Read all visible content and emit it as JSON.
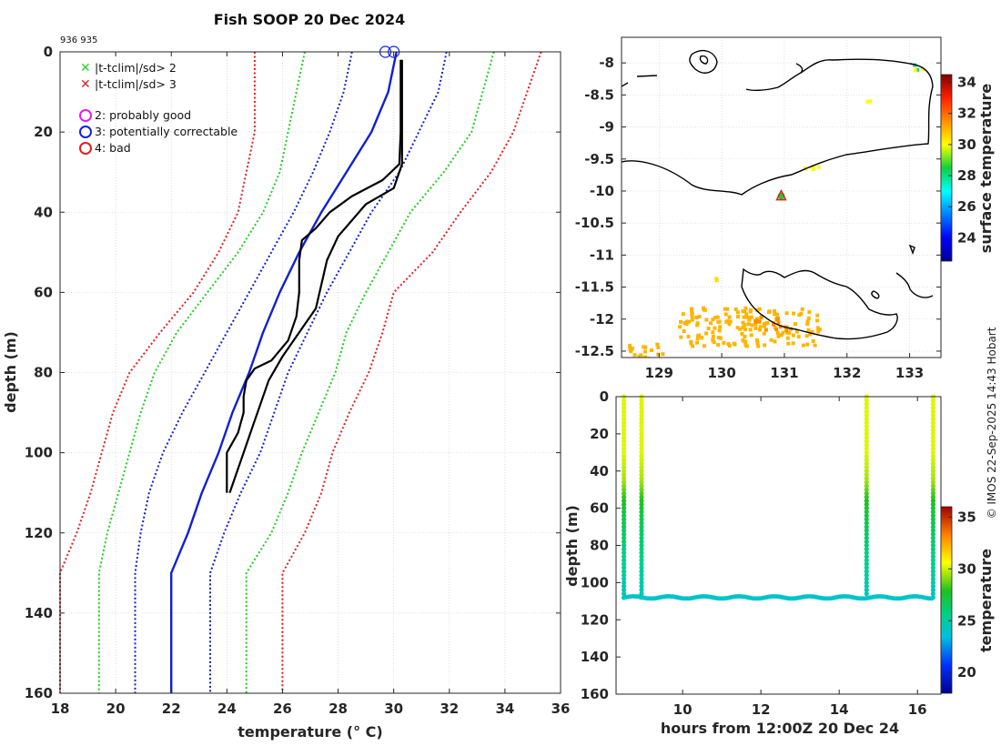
{
  "figure": {
    "title": "Fish SOOP 20 Dec 2024",
    "ids": "936 935",
    "credit": "© IMOS 22-Sep-2025 14:43 Hobart"
  },
  "legend": {
    "cross_items": [
      {
        "label": "|t-tclim|/sd> 2",
        "color": "#22dd22"
      },
      {
        "label": "|t-tclim|/sd> 3",
        "color": "#e02020"
      }
    ],
    "circle_items": [
      {
        "label": "2: probably good",
        "color": "#e020e0"
      },
      {
        "label": "3: potentially correctable",
        "color": "#1020e0"
      },
      {
        "label": "4: bad",
        "color": "#e02020"
      }
    ]
  },
  "chart_data": [
    {
      "type": "line",
      "name": "profile",
      "title": "Fish SOOP 20 Dec 2024",
      "xlabel": "temperature (° C)",
      "ylabel": "depth (m)",
      "xlim": [
        18,
        36
      ],
      "ylim": [
        0,
        160
      ],
      "y_reversed": true,
      "xticks": [
        18,
        20,
        22,
        24,
        26,
        28,
        30,
        32,
        34,
        36
      ],
      "yticks": [
        0,
        20,
        40,
        60,
        80,
        100,
        120,
        140,
        160
      ],
      "grid": true,
      "series": [
        {
          "name": "clim_mean",
          "style": "solid",
          "color": "#1020d0",
          "depth": [
            0,
            10,
            20,
            30,
            40,
            50,
            60,
            70,
            80,
            90,
            100,
            110,
            120,
            130,
            160
          ],
          "temp": [
            30.1,
            29.8,
            29.2,
            28.3,
            27.4,
            26.6,
            25.9,
            25.3,
            24.8,
            24.2,
            23.7,
            23.1,
            22.6,
            22.0,
            22.0
          ]
        },
        {
          "name": "clim_minus_1sd",
          "style": "dotted",
          "color": "#1020d0",
          "depth": [
            0,
            10,
            20,
            30,
            40,
            50,
            60,
            70,
            80,
            90,
            100,
            110,
            120,
            130,
            160
          ],
          "temp": [
            28.5,
            28.2,
            27.7,
            27.1,
            26.4,
            25.6,
            24.8,
            24.0,
            23.2,
            22.4,
            21.7,
            21.2,
            20.9,
            20.7,
            20.7
          ]
        },
        {
          "name": "clim_plus_1sd",
          "style": "dotted",
          "color": "#1020d0",
          "depth": [
            0,
            10,
            20,
            30,
            40,
            50,
            60,
            70,
            80,
            90,
            100,
            110,
            120,
            130,
            160
          ],
          "temp": [
            31.9,
            31.6,
            30.9,
            30.2,
            29.2,
            28.4,
            27.6,
            26.9,
            26.2,
            25.7,
            25.2,
            24.5,
            23.9,
            23.4,
            23.4
          ]
        },
        {
          "name": "clim_minus_2sd",
          "style": "dotted",
          "color": "#22cc22",
          "depth": [
            0,
            10,
            20,
            30,
            40,
            50,
            60,
            70,
            80,
            90,
            100,
            110,
            120,
            130,
            160
          ],
          "temp": [
            26.8,
            26.5,
            26.2,
            25.9,
            25.3,
            24.4,
            23.3,
            22.2,
            21.4,
            20.9,
            20.5,
            20.1,
            19.7,
            19.4,
            19.4
          ]
        },
        {
          "name": "clim_plus_2sd",
          "style": "dotted",
          "color": "#22cc22",
          "depth": [
            0,
            10,
            20,
            30,
            40,
            50,
            60,
            70,
            80,
            90,
            100,
            110,
            120,
            130,
            160
          ],
          "temp": [
            33.6,
            33.2,
            32.8,
            31.8,
            30.6,
            29.8,
            29.0,
            28.3,
            27.9,
            27.3,
            26.7,
            26.2,
            25.6,
            24.7,
            24.7
          ]
        },
        {
          "name": "clim_minus_3sd",
          "style": "dotted",
          "color": "#e02020",
          "depth": [
            0,
            10,
            20,
            30,
            40,
            50,
            60,
            70,
            80,
            90,
            100,
            110,
            120,
            130,
            160
          ],
          "temp": [
            25.0,
            25.0,
            25.0,
            24.7,
            24.4,
            23.7,
            22.8,
            21.6,
            20.5,
            19.9,
            19.5,
            19.1,
            18.6,
            18.0,
            18.0
          ]
        },
        {
          "name": "clim_plus_3sd",
          "style": "dotted",
          "color": "#e02020",
          "depth": [
            0,
            10,
            20,
            30,
            40,
            50,
            60,
            70,
            80,
            90,
            100,
            110,
            120,
            130,
            160
          ],
          "temp": [
            35.3,
            34.8,
            34.3,
            33.5,
            32.4,
            31.4,
            30.0,
            29.6,
            29.1,
            28.4,
            27.8,
            27.4,
            26.8,
            26.0,
            26.0
          ]
        },
        {
          "name": "profile_936",
          "style": "solid",
          "color": "#000000",
          "depth": [
            2,
            10,
            20,
            28,
            32,
            36,
            40,
            44,
            47,
            52,
            60,
            66,
            72,
            77,
            79,
            82,
            86,
            90,
            95,
            100,
            103,
            110
          ],
          "temp": [
            30.25,
            30.25,
            30.25,
            30.2,
            29.6,
            28.5,
            27.7,
            27.2,
            26.7,
            26.6,
            26.6,
            26.5,
            26.2,
            25.6,
            25.0,
            24.7,
            24.6,
            24.6,
            24.4,
            24.0,
            24.0,
            24.0
          ]
        },
        {
          "name": "profile_935",
          "style": "solid",
          "color": "#000000",
          "depth": [
            2,
            10,
            20,
            28,
            34,
            38,
            42,
            46,
            52,
            58,
            64,
            70,
            76,
            82,
            88,
            94,
            100,
            110
          ],
          "temp": [
            30.3,
            30.3,
            30.3,
            30.3,
            30.0,
            29.0,
            28.5,
            28.0,
            27.6,
            27.4,
            27.2,
            26.6,
            26.0,
            25.5,
            25.2,
            24.9,
            24.6,
            24.1
          ]
        }
      ],
      "flag_markers": [
        {
          "label": "3",
          "depth": 0,
          "temp": 29.7
        },
        {
          "label": "3",
          "depth": 0,
          "temp": 30.0
        }
      ]
    },
    {
      "type": "heatmap",
      "name": "sst_map",
      "colorbar_label": "surface temperature",
      "xlim": [
        128.4,
        133.5
      ],
      "ylim": [
        -12.6,
        -7.6
      ],
      "xticks": [
        129,
        130,
        131,
        132,
        133
      ],
      "yticks": [
        -8,
        -8.5,
        -9,
        -9.5,
        -10,
        -10.5,
        -11,
        -11.5,
        -12,
        -12.5
      ],
      "clim": [
        22.5,
        34.5
      ],
      "cticks": [
        24,
        26,
        28,
        30,
        32,
        34
      ],
      "station": {
        "lon": 130.95,
        "lat": -10.08
      },
      "sst_patches": [
        {
          "lon0": 129.3,
          "lon1": 131.6,
          "lat0": -12.4,
          "lat1": -11.8,
          "value": 31.0
        },
        {
          "lon0": 130.5,
          "lon1": 131.1,
          "lat0": -12.15,
          "lat1": -11.95,
          "value": 31.5
        },
        {
          "lon0": 128.45,
          "lon1": 129.1,
          "lat0": -12.6,
          "lat1": -12.35,
          "value": 31.0
        },
        {
          "lon0": 131.3,
          "lon1": 131.6,
          "lat0": -9.7,
          "lat1": -9.55,
          "value": 30.0
        },
        {
          "lon0": 132.3,
          "lon1": 132.4,
          "lat0": -8.6,
          "lat1": -8.5,
          "value": 30.0
        },
        {
          "lon0": 132.9,
          "lon1": 133.1,
          "lat0": -8.1,
          "lat1": -8.0,
          "value": 28.0
        },
        {
          "lon0": 133.0,
          "lon1": 133.2,
          "lat0": -8.15,
          "lat1": -8.05,
          "value": 30.0
        },
        {
          "lon0": 129.8,
          "lon1": 129.9,
          "lat0": -11.4,
          "lat1": -11.3,
          "value": 30.5
        }
      ]
    },
    {
      "type": "scatter",
      "name": "section",
      "xlabel": "hours from 12:00Z 20 Dec 24",
      "ylabel": "depth (m)",
      "colorbar_label": "temperature",
      "xlim": [
        8.3,
        16.6
      ],
      "ylim": [
        0,
        160
      ],
      "y_reversed": true,
      "xticks": [
        10,
        12,
        14,
        16
      ],
      "yticks": [
        0,
        20,
        40,
        60,
        80,
        100,
        120,
        140,
        160
      ],
      "clim": [
        18,
        36
      ],
      "cticks": [
        20,
        25,
        30,
        35
      ],
      "casts": [
        {
          "hour": 8.5,
          "max_depth": 108
        },
        {
          "hour": 8.95,
          "max_depth": 109
        },
        {
          "hour": 14.7,
          "max_depth": 107
        },
        {
          "hour": 16.4,
          "max_depth": 108
        }
      ],
      "tow_segment": {
        "hour_start": 8.5,
        "hour_end": 16.4,
        "depth": 108,
        "temp": 24.0
      },
      "column_profile": {
        "depth": [
          0,
          30,
          45,
          55,
          65,
          80,
          100,
          110
        ],
        "temp": [
          30.2,
          30.2,
          29.5,
          28.0,
          27.0,
          26.0,
          24.8,
          24.0
        ]
      }
    }
  ]
}
